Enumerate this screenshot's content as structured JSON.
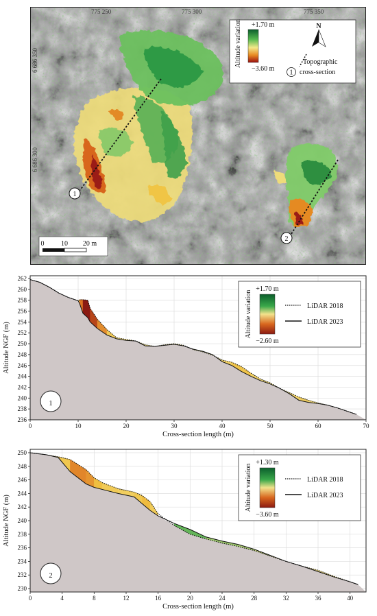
{
  "map": {
    "legend": {
      "max_label": "+1.70 m",
      "min_label": "−3.60 m",
      "title": "Altitude variation",
      "section_label_line1": "Topographic",
      "section_label_line2": "cross-section",
      "north_letter": "N",
      "section_marker": "1"
    },
    "grid_labels_top": [
      "775 250",
      "775 300",
      "775 350"
    ],
    "grid_labels_left": [
      "6 686 350",
      "6 686 300"
    ],
    "scale_bar": {
      "labels": [
        "0",
        "10",
        "20 m"
      ]
    },
    "section_markers": [
      "1",
      "2"
    ]
  },
  "chart_data": [
    {
      "type": "area",
      "panel_label": "1",
      "xlabel": "Cross-section length (m)",
      "ylabel": "Altitude NGF (m)",
      "xlim": [
        0,
        70
      ],
      "ylim": [
        236,
        262.5
      ],
      "x_ticks": [
        0,
        10,
        20,
        30,
        40,
        50,
        60,
        70
      ],
      "y_ticks": [
        236,
        238,
        240,
        242,
        244,
        246,
        248,
        250,
        252,
        254,
        256,
        258,
        260,
        262
      ],
      "grid": true,
      "legend": {
        "title": "Altitude variation",
        "max_label": "+1.70 m",
        "min_label": "−2.60 m",
        "placement": "top-right",
        "series_names": [
          "LiDAR 2018",
          "LiDAR 2023"
        ]
      },
      "series": [
        {
          "name": "LiDAR 2018",
          "style": "dotted",
          "x": [
            0,
            2,
            4,
            6,
            8,
            10,
            10.3,
            11,
            12,
            12.5,
            14,
            16,
            18,
            20,
            22,
            24,
            26,
            28,
            30,
            32,
            34,
            36,
            38,
            40,
            42,
            44,
            46,
            48,
            50,
            52,
            54,
            56,
            58,
            60,
            62,
            64,
            66,
            68
          ],
          "y": [
            261.8,
            261.3,
            260.4,
            259.3,
            258.5,
            257.9,
            258.1,
            258.1,
            258.0,
            256.5,
            254.5,
            252.6,
            251.1,
            250.8,
            250.5,
            249.8,
            249.5,
            249.8,
            250.0,
            249.7,
            248.9,
            248.5,
            247.9,
            247.0,
            246.6,
            245.8,
            244.6,
            243.5,
            242.8,
            241.8,
            241.0,
            240.2,
            239.6,
            239.1,
            238.7,
            238.2,
            237.6,
            237.0
          ]
        },
        {
          "name": "LiDAR 2023",
          "style": "solid",
          "x": [
            0,
            2,
            4,
            6,
            8,
            10,
            10.3,
            11,
            12,
            12.5,
            14,
            16,
            18,
            20,
            22,
            24,
            26,
            28,
            30,
            32,
            34,
            36,
            38,
            40,
            42,
            44,
            46,
            48,
            50,
            52,
            54,
            56,
            58,
            60,
            62,
            64,
            66,
            68
          ],
          "y": [
            261.8,
            261.3,
            260.4,
            259.3,
            258.5,
            257.9,
            257.4,
            255.6,
            254.8,
            254.0,
            252.8,
            251.6,
            250.9,
            250.6,
            250.5,
            249.6,
            249.5,
            249.7,
            249.9,
            249.6,
            249.0,
            248.6,
            248.0,
            246.7,
            246.0,
            244.9,
            244.0,
            243.2,
            242.6,
            241.8,
            240.8,
            239.6,
            239.2,
            239.0,
            238.7,
            238.2,
            237.6,
            237.0
          ]
        }
      ]
    },
    {
      "type": "area",
      "panel_label": "2",
      "xlabel": "Cross-section length (m)",
      "ylabel": "Altitude NGF (m)",
      "xlim": [
        0,
        42
      ],
      "ylim": [
        229.5,
        250.5
      ],
      "x_ticks": [
        0,
        4,
        8,
        12,
        16,
        20,
        24,
        28,
        32,
        36,
        40
      ],
      "y_ticks": [
        230,
        232,
        234,
        236,
        238,
        240,
        242,
        244,
        246,
        248,
        250
      ],
      "grid": true,
      "legend": {
        "title": "Altitude variation",
        "max_label": "+1.30 m",
        "min_label": "−3.60 m",
        "placement": "top-right",
        "series_names": [
          "LiDAR 2018",
          "LiDAR 2023"
        ]
      },
      "series": [
        {
          "name": "LiDAR 2018",
          "style": "dotted",
          "x": [
            0,
            2,
            3.5,
            5,
            7,
            8,
            9,
            11,
            13,
            14,
            15,
            16,
            18,
            20,
            22,
            24,
            26,
            28,
            30,
            32,
            34,
            36,
            38,
            40,
            41
          ],
          "y": [
            250.0,
            249.7,
            249.4,
            249.0,
            247.5,
            246.3,
            245.6,
            244.7,
            244.2,
            243.7,
            242.8,
            241.0,
            239.3,
            238.0,
            237.3,
            236.7,
            236.2,
            235.6,
            234.8,
            234.0,
            233.3,
            232.7,
            231.8,
            231.0,
            230.6
          ]
        },
        {
          "name": "LiDAR 2023",
          "style": "solid",
          "x": [
            0,
            2,
            3.5,
            5,
            7,
            8,
            9,
            11,
            13,
            14,
            15,
            16,
            18,
            20,
            22,
            24,
            26,
            28,
            30,
            32,
            34,
            36,
            38,
            40,
            41
          ],
          "y": [
            250.0,
            249.7,
            249.3,
            247.2,
            245.4,
            244.9,
            244.6,
            244.0,
            243.5,
            242.5,
            241.5,
            240.7,
            239.6,
            238.7,
            237.6,
            237.0,
            236.5,
            235.8,
            234.9,
            234.0,
            233.3,
            232.5,
            231.7,
            231.0,
            230.6
          ]
        }
      ]
    }
  ],
  "colors": {
    "gain_dark": "#0b5e2c",
    "gain": "#3aa84a",
    "gain_light": "#a9d98a",
    "neutral": "#f2e28c",
    "loss_light": "#f0c040",
    "loss": "#d8661e",
    "loss_dark": "#8b1a12",
    "terrain_fill": "#cfc7c7"
  }
}
